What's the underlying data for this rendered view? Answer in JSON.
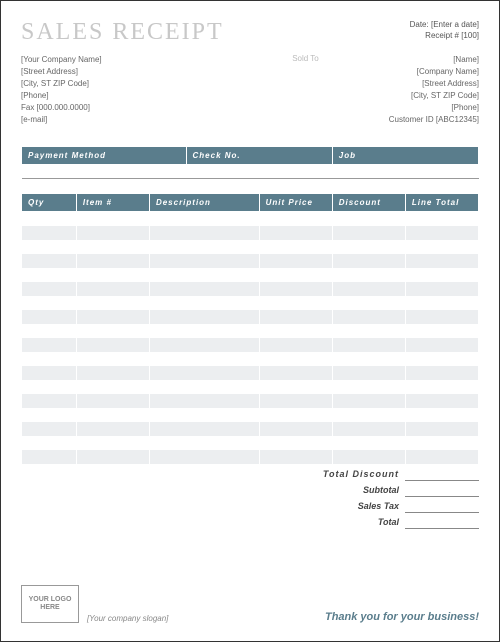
{
  "title": "SALES RECEIPT",
  "header": {
    "date_label": "Date:",
    "date_value": "[Enter a date]",
    "receipt_label": "Receipt #",
    "receipt_value": "[100]"
  },
  "from": {
    "company": "[Your Company Name]",
    "street": "[Street Address]",
    "city": "[City, ST ZIP Code]",
    "phone": "[Phone]",
    "fax": "Fax [000.000.0000]",
    "email": "[e-mail]"
  },
  "sold_to_label": "Sold To",
  "to": {
    "name": "[Name]",
    "company": "[Company Name]",
    "street": "[Street Address]",
    "city": "[City, ST ZIP Code]",
    "phone": "[Phone]",
    "customer_id": "Customer ID [ABC12345]"
  },
  "payment_headers": {
    "method": "Payment Method",
    "check": "Check No.",
    "job": "Job"
  },
  "items_headers": {
    "qty": "Qty",
    "item": "Item #",
    "desc": "Description",
    "unit": "Unit Price",
    "discount": "Discount",
    "total": "Line Total"
  },
  "totals": {
    "total_discount": "Total Discount",
    "subtotal": "Subtotal",
    "sales_tax": "Sales Tax",
    "total": "Total"
  },
  "footer": {
    "logo_text": "YOUR LOGO HERE",
    "slogan": "[Your company slogan]",
    "thank_you": "Thank you for your business!"
  },
  "styling": {
    "header_bg": "#5a7d8c",
    "stripe_bg": "#eceef0",
    "title_color": "#c8c8c8",
    "accent_color": "#5a7d8c",
    "item_rows": 18
  }
}
